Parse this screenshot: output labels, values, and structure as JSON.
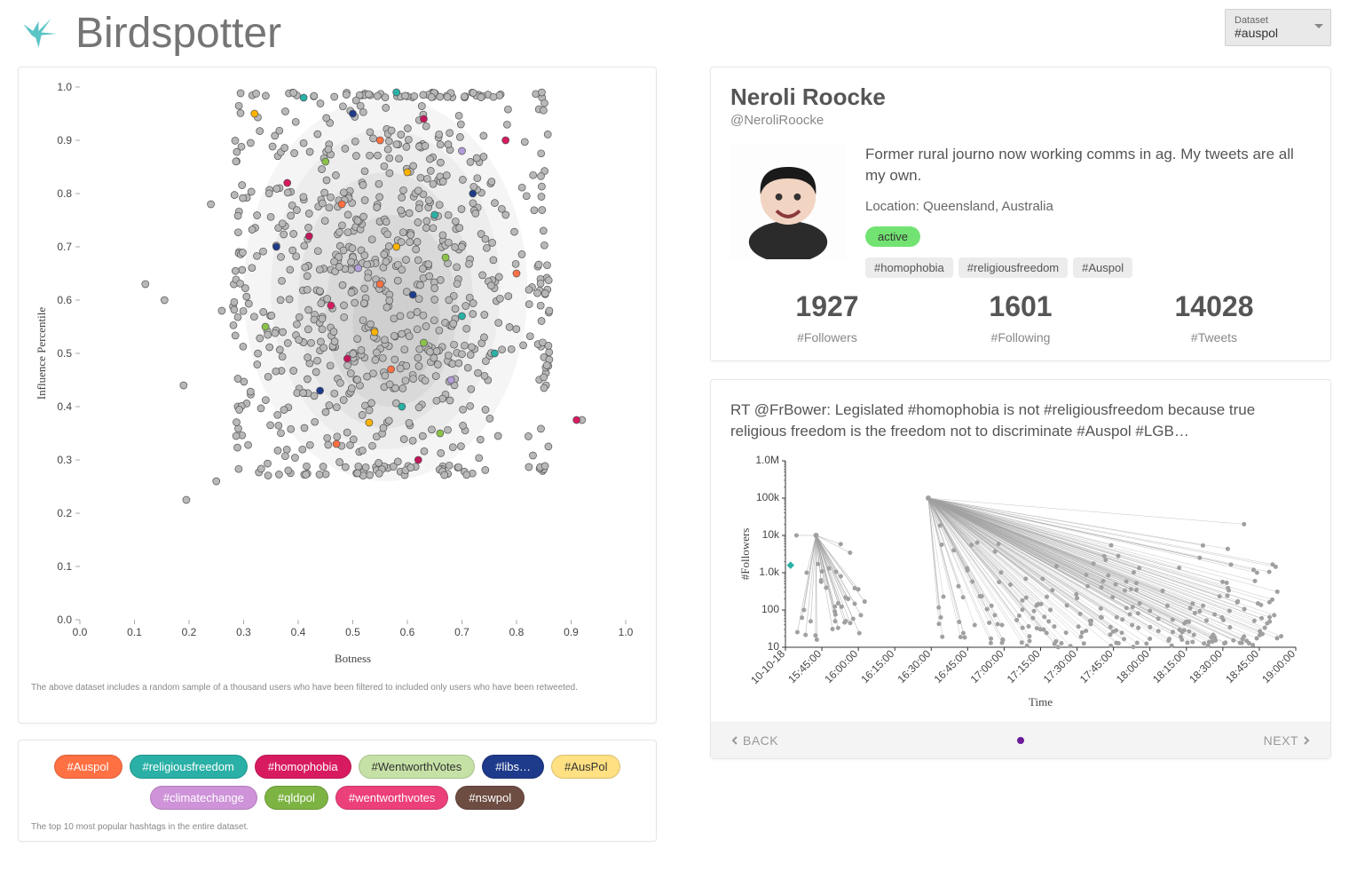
{
  "app": {
    "title": "Birdspotter",
    "logo_color": "#5bc4c4"
  },
  "dataset_selector": {
    "label": "Dataset",
    "value": "#auspol"
  },
  "scatter": {
    "type": "scatter",
    "xlabel": "Botness",
    "ylabel": "Influence Percentile",
    "xlim": [
      0.0,
      1.0
    ],
    "ylim": [
      0.0,
      1.0
    ],
    "xtick_step": 0.1,
    "ytick_step": 0.1,
    "label_fontsize": 13,
    "tick_fontsize": 12,
    "background_color": "#ffffff",
    "point_radius": 4,
    "point_stroke": "#555555",
    "grey_point_fill": "#b8b8b8",
    "density_colors": [
      "#f5f5f5",
      "#ededed",
      "#e3e3e3",
      "#d9d9d9",
      "#cfcfcf"
    ],
    "caption": "The above dataset includes a random sample of a thousand users who have been filtered to included only users who have been retweeted.",
    "colored_points": [
      {
        "x": 0.58,
        "y": 0.99,
        "c": "#2ab0a6"
      },
      {
        "x": 0.41,
        "y": 0.98,
        "c": "#2ab0a6"
      },
      {
        "x": 0.5,
        "y": 0.95,
        "c": "#1e3a8a"
      },
      {
        "x": 0.63,
        "y": 0.94,
        "c": "#c2185b"
      },
      {
        "x": 0.55,
        "y": 0.9,
        "c": "#ff7043"
      },
      {
        "x": 0.7,
        "y": 0.88,
        "c": "#b19cd9"
      },
      {
        "x": 0.45,
        "y": 0.86,
        "c": "#8bc34a"
      },
      {
        "x": 0.6,
        "y": 0.84,
        "c": "#ffb300"
      },
      {
        "x": 0.38,
        "y": 0.82,
        "c": "#d81b60"
      },
      {
        "x": 0.72,
        "y": 0.8,
        "c": "#1e3a8a"
      },
      {
        "x": 0.48,
        "y": 0.78,
        "c": "#ff7043"
      },
      {
        "x": 0.65,
        "y": 0.76,
        "c": "#2ab0a6"
      },
      {
        "x": 0.42,
        "y": 0.72,
        "c": "#c2185b"
      },
      {
        "x": 0.58,
        "y": 0.7,
        "c": "#ffb300"
      },
      {
        "x": 0.67,
        "y": 0.68,
        "c": "#8bc34a"
      },
      {
        "x": 0.51,
        "y": 0.66,
        "c": "#b19cd9"
      },
      {
        "x": 0.55,
        "y": 0.63,
        "c": "#ff7043"
      },
      {
        "x": 0.61,
        "y": 0.61,
        "c": "#1e3a8a"
      },
      {
        "x": 0.46,
        "y": 0.59,
        "c": "#d81b60"
      },
      {
        "x": 0.7,
        "y": 0.57,
        "c": "#2ab0a6"
      },
      {
        "x": 0.54,
        "y": 0.54,
        "c": "#ffb300"
      },
      {
        "x": 0.63,
        "y": 0.52,
        "c": "#8bc34a"
      },
      {
        "x": 0.49,
        "y": 0.49,
        "c": "#c2185b"
      },
      {
        "x": 0.57,
        "y": 0.47,
        "c": "#ff7043"
      },
      {
        "x": 0.68,
        "y": 0.45,
        "c": "#b19cd9"
      },
      {
        "x": 0.44,
        "y": 0.43,
        "c": "#1e3a8a"
      },
      {
        "x": 0.91,
        "y": 0.375,
        "c": "#d81b60"
      },
      {
        "x": 0.59,
        "y": 0.4,
        "c": "#2ab0a6"
      },
      {
        "x": 0.53,
        "y": 0.37,
        "c": "#ffb300"
      },
      {
        "x": 0.66,
        "y": 0.35,
        "c": "#8bc34a"
      },
      {
        "x": 0.47,
        "y": 0.33,
        "c": "#ff7043"
      },
      {
        "x": 0.62,
        "y": 0.3,
        "c": "#c2185b"
      },
      {
        "x": 0.32,
        "y": 0.95,
        "c": "#ffb300"
      },
      {
        "x": 0.78,
        "y": 0.9,
        "c": "#d81b60"
      },
      {
        "x": 0.36,
        "y": 0.7,
        "c": "#1e3a8a"
      },
      {
        "x": 0.8,
        "y": 0.65,
        "c": "#ff7043"
      },
      {
        "x": 0.34,
        "y": 0.55,
        "c": "#8bc34a"
      },
      {
        "x": 0.76,
        "y": 0.5,
        "c": "#2ab0a6"
      }
    ],
    "grey_cluster": {
      "n": 820,
      "x_center": 0.56,
      "y_center": 0.62,
      "x_spread": 0.17,
      "y_spread": 0.24
    },
    "grey_extras": [
      {
        "x": 0.12,
        "y": 0.63
      },
      {
        "x": 0.155,
        "y": 0.6
      },
      {
        "x": 0.19,
        "y": 0.44
      },
      {
        "x": 0.24,
        "y": 0.78
      },
      {
        "x": 0.25,
        "y": 0.26
      },
      {
        "x": 0.26,
        "y": 0.58
      },
      {
        "x": 0.195,
        "y": 0.225
      },
      {
        "x": 0.92,
        "y": 0.375
      },
      {
        "x": 0.86,
        "y": 0.58
      }
    ]
  },
  "legend": {
    "caption": "The top 10 most popular hashtags in the entire dataset.",
    "pills": [
      {
        "label": "#Auspol",
        "color": "#ff7043",
        "low": false
      },
      {
        "label": "#religiousfreedom",
        "color": "#2ab0a6",
        "low": false
      },
      {
        "label": "#homophobia",
        "color": "#d81b60",
        "low": false
      },
      {
        "label": "#WentworthVotes",
        "color": "#c5e1a5",
        "low": true
      },
      {
        "label": "#libs…",
        "color": "#1e3a8a",
        "low": false
      },
      {
        "label": "#AusPol",
        "color": "#ffe082",
        "low": true
      },
      {
        "label": "#climatechange",
        "color": "#ce93d8",
        "low": false
      },
      {
        "label": "#qldpol",
        "color": "#7cb342",
        "low": false
      },
      {
        "label": "#wentworthvotes",
        "color": "#ec407a",
        "low": false
      },
      {
        "label": "#nswpol",
        "color": "#6d4c41",
        "low": false
      }
    ]
  },
  "profile": {
    "name": "Neroli Roocke",
    "handle": "@NeroliRoocke",
    "bio": "Former rural journo now working comms in ag. My tweets are all my own.",
    "location_label": "Location: ",
    "location": "Queensland, Australia",
    "status": "active",
    "status_bg": "#72e372",
    "tags": [
      "#homophobia",
      "#religiousfreedom",
      "#Auspol"
    ],
    "stats": [
      {
        "num": "1927",
        "label": "#Followers"
      },
      {
        "num": "1601",
        "label": "#Following"
      },
      {
        "num": "14028",
        "label": "#Tweets"
      }
    ]
  },
  "tweet": {
    "text": "RT @FrBower: Legislated #homophobia is not #religiousfreedom because true religious freedom is the freedom not to discriminate #Auspol #LGB…",
    "cascade": {
      "type": "cascade",
      "xlabel": "Time",
      "ylabel": "#Followers",
      "y_ticks": [
        "10",
        "100",
        "1.0k",
        "10k",
        "100k",
        "1.0M"
      ],
      "x_ticks": [
        "10-10-18",
        "15:45:00",
        "16:00:00",
        "16:15:00",
        "16:30:00",
        "16:45:00",
        "17:00:00",
        "17:15:00",
        "17:30:00",
        "17:45:00",
        "18:00:00",
        "18:15:00",
        "18:30:00",
        "18:45:00",
        "19:00:00"
      ],
      "point_color": "#a0a0a0",
      "line_color": "#a0a0a0",
      "root_color": "#2ab0a6",
      "label_fontsize": 13,
      "tick_fontsize": 10
    },
    "pager": {
      "back": "BACK",
      "next": "NEXT",
      "dot_color": "#6a1b9a"
    }
  }
}
